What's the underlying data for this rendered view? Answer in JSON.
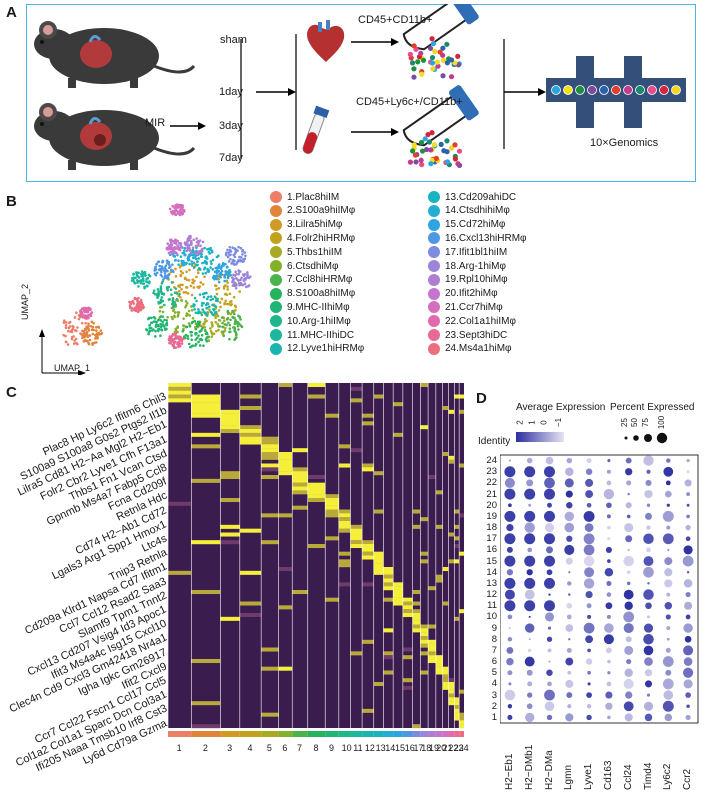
{
  "panels": {
    "a": "A",
    "b": "B",
    "c": "C",
    "d": "D"
  },
  "panelA": {
    "sham": "sham",
    "mir": "MIR",
    "days": [
      "1day",
      "3day",
      "7day"
    ],
    "sort1": "CD45+CD11b+",
    "sort2": "CD45+Ly6c+/CD11b+",
    "platform": "10×Genomics",
    "bead_colors": [
      "#29a8e0",
      "#f2e11a",
      "#1e8f3e",
      "#7a4da0",
      "#2b62b0",
      "#e33e2b",
      "#c23b8e",
      "#1a8a6e",
      "#e94c8a",
      "#d4243c",
      "#f4d51e"
    ]
  },
  "panelB": {
    "xaxis": "UMAP_1",
    "yaxis": "UMAP_2",
    "clusters_left": [
      {
        "label": "1.Plac8hiIM",
        "color": "#ec7e69"
      },
      {
        "label": "2.S100a9hiIMφ",
        "color": "#e0843a"
      },
      {
        "label": "3.Lilra5hiMφ",
        "color": "#d09a25"
      },
      {
        "label": "4.Folr2hiHRMφ",
        "color": "#c0a21c"
      },
      {
        "label": "5.Thbs1hiIM",
        "color": "#a8ab22"
      },
      {
        "label": "6.CtsdhiMφ",
        "color": "#83b12c"
      },
      {
        "label": "7.Ccl8hiHRMφ",
        "color": "#4bb34a"
      },
      {
        "label": "8.S100a8hiIMφ",
        "color": "#25b35e"
      },
      {
        "label": "9.MHC-IIhiMφ",
        "color": "#20b574"
      },
      {
        "label": "10.Arg-1hiIMφ",
        "color": "#1fb68a"
      },
      {
        "label": "11.MHC-IIhiDC",
        "color": "#1bb79f"
      },
      {
        "label": "12.Lyve1hiHRMφ",
        "color": "#1bb5b0"
      }
    ],
    "clusters_right": [
      {
        "label": "13.Cd209ahiDC",
        "color": "#19b3c2"
      },
      {
        "label": "14.CtsdhihiMφ",
        "color": "#24aed3"
      },
      {
        "label": "15.Cd72hiMφ",
        "color": "#2ea4e0"
      },
      {
        "label": "16.Cxcl13hiHRMφ",
        "color": "#4e97e3"
      },
      {
        "label": "17.Ifit1bl1hiIM",
        "color": "#7d8ce0"
      },
      {
        "label": "18.Arg-1hiMφ",
        "color": "#9b85d8"
      },
      {
        "label": "19.Rpl10hiMφ",
        "color": "#b07dd3"
      },
      {
        "label": "20.Ifit2hiMφ",
        "color": "#c475cd"
      },
      {
        "label": "21.Ccr7hiMφ",
        "color": "#d46fbe"
      },
      {
        "label": "22.Col1a1hiIMφ",
        "color": "#e06aab"
      },
      {
        "label": "23.Sept3hiDC",
        "color": "#e66a94"
      },
      {
        "label": "24.Ms4a1hiMφ",
        "color": "#ec6d7e"
      }
    ]
  },
  "panelC": {
    "gene_rows": [
      "Plac8  Hp  Ly6c2  Ifitm6  Chil3",
      "S100a9  S100a8  G0s2  Ptgs2  Il1b",
      "Lilra5  Cd81  H2−Aa  Mgl2  H2−Eb1",
      "Folr2  Cbr2  Lyve1  Cfh  F13a1",
      "Thbs1  Fn1  Vcan  Ctsd",
      "Gpnmb  Ms4a7  Fabp5  Ccl8",
      "Fcna  Cd209f",
      "Retnla  Hdc",
      "Cd74  H2−Ab1  Cd72",
      "Lgals3  Arg1  Spp1  Hmox1",
      "Ltc4s",
      "Tnip3  Retnla",
      "Cd209a  Klrd1  Napsa  Cd7  Ifitm1",
      "Ccl7  Ccl12  Rsad2  Saa3",
      "Slamf9  Tpm1  Tnnt2",
      "Cxcl13  Cd207  Vsig4  Id3  Apoc1",
      "Ifit3  Ms4a4c  Isg15  Cxcl10",
      "Clec4n  Cd9  Cxcl3  Gm42418  Nr4a1",
      "Igha  Igkc  Gm26917",
      "Ifit2  Cxcl9",
      "Ccr7  Ccl22  Fscn1  Ccl17  Ccl5",
      "Col1a2  Col1a1  Sparc  Dcn  Col3a1",
      "Ifi205  Naaa  Tmsb10  Irf8  Cst3",
      "Ly6d  Cd79a  Gzma"
    ],
    "x_ticks": [
      "1",
      "2",
      "3",
      "4",
      "5",
      "6",
      "7",
      "8",
      "9",
      "10",
      "11",
      "12",
      "13",
      "14",
      "15",
      "16",
      "17",
      "18",
      "19",
      "20",
      "21",
      "22",
      "23",
      "24"
    ]
  },
  "panelD": {
    "title_avg": "Average Expression",
    "title_pct": "Percent Expressed",
    "identity": "Identity",
    "avg_ticks": [
      "2",
      "1",
      "0",
      "−1"
    ],
    "pct_ticks": [
      "25",
      "50",
      "75",
      "100"
    ],
    "genes": [
      "H2−Eb1",
      "H2−DMb1",
      "H2−DMa",
      "Lgmn",
      "Lyve1",
      "Cd163",
      "Ccl24",
      "Timd4",
      "Ly6c2",
      "Ccr2"
    ],
    "identities": [
      "24",
      "23",
      "22",
      "21",
      "20",
      "19",
      "18",
      "17",
      "16",
      "15",
      "14",
      "13",
      "12",
      "11",
      "10",
      "9",
      "8",
      "7",
      "6",
      "5",
      "4",
      "3",
      "2",
      "1"
    ],
    "high_color": "#2b2fa0",
    "low_color": "#d9d6ee"
  }
}
